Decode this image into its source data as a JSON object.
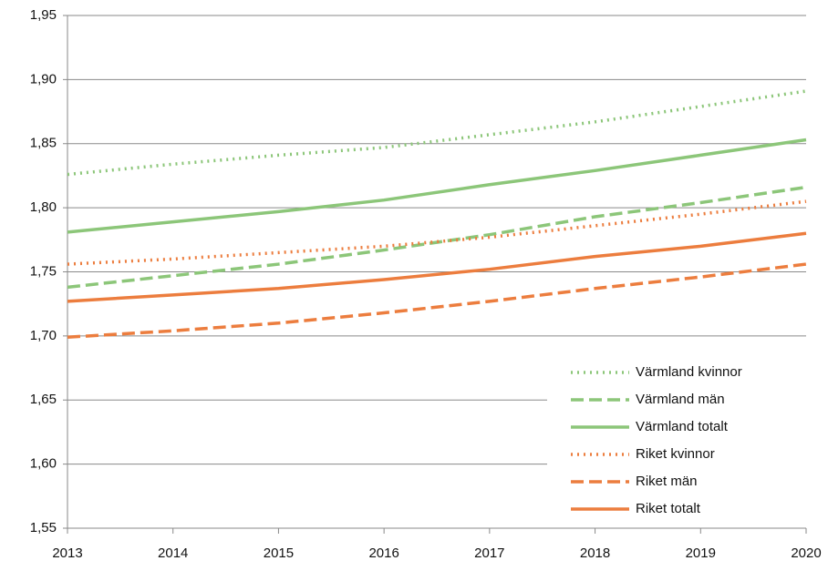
{
  "chart_data": {
    "type": "line",
    "x": [
      2013,
      2014,
      2015,
      2016,
      2017,
      2018,
      2019,
      2020
    ],
    "xlim": [
      2013,
      2020
    ],
    "xticks": [
      2013,
      2014,
      2015,
      2016,
      2017,
      2018,
      2019,
      2020
    ],
    "ylim": [
      1.55,
      1.95
    ],
    "yticks": [
      {
        "value": 1.55,
        "label": "1,55"
      },
      {
        "value": 1.6,
        "label": "1,60"
      },
      {
        "value": 1.65,
        "label": "1,65"
      },
      {
        "value": 1.7,
        "label": "1,70"
      },
      {
        "value": 1.75,
        "label": "1,75"
      },
      {
        "value": 1.8,
        "label": "1,80"
      },
      {
        "value": 1.85,
        "label": "1,85"
      },
      {
        "value": 1.9,
        "label": "1,90"
      },
      {
        "value": 1.95,
        "label": "1,95"
      }
    ],
    "grid": true,
    "legend": "bottom-right",
    "series": [
      {
        "name": "Värmland kvinnor",
        "color": "#8cc679",
        "line_style": "dotted",
        "values": [
          1.826,
          1.834,
          1.841,
          1.847,
          1.857,
          1.867,
          1.879,
          1.891
        ]
      },
      {
        "name": "Värmland män",
        "color": "#8cc679",
        "line_style": "dashed",
        "values": [
          1.738,
          1.747,
          1.756,
          1.767,
          1.779,
          1.793,
          1.804,
          1.816
        ]
      },
      {
        "name": "Värmland totalt",
        "color": "#8cc679",
        "line_style": "solid",
        "values": [
          1.781,
          1.789,
          1.797,
          1.806,
          1.818,
          1.829,
          1.841,
          1.853
        ]
      },
      {
        "name": "Riket kvinnor",
        "color": "#ec7d3e",
        "line_style": "dotted",
        "values": [
          1.756,
          1.76,
          1.765,
          1.77,
          1.777,
          1.786,
          1.795,
          1.805
        ]
      },
      {
        "name": "Riket män",
        "color": "#ec7d3e",
        "line_style": "dashed",
        "values": [
          1.699,
          1.704,
          1.71,
          1.718,
          1.727,
          1.737,
          1.746,
          1.756
        ]
      },
      {
        "name": "Riket totalt",
        "color": "#ec7d3e",
        "line_style": "solid",
        "values": [
          1.727,
          1.732,
          1.737,
          1.744,
          1.752,
          1.762,
          1.77,
          1.78
        ]
      }
    ]
  }
}
